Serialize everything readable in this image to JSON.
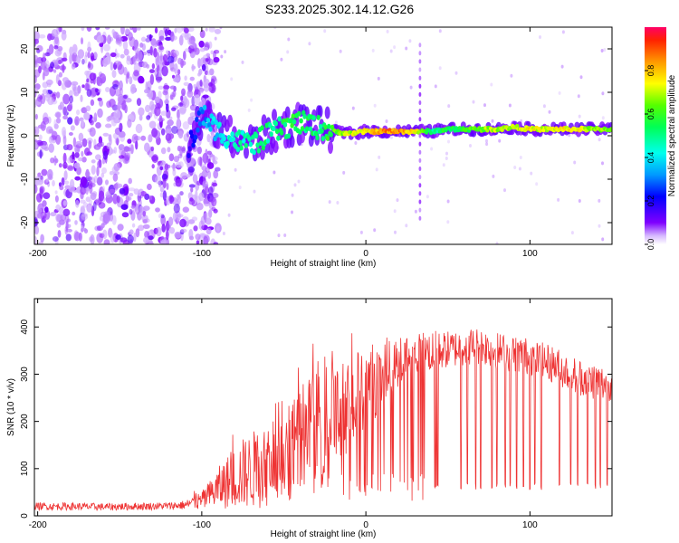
{
  "title": "S233.2025.302.14.12.G26",
  "chart_data": [
    {
      "type": "heatmap",
      "xlabel": "Height of straight line (km)",
      "ylabel": "Frequency (Hz)",
      "xlim": [
        -202,
        150
      ],
      "ylim": [
        -25,
        25
      ],
      "xticks": [
        -200,
        -100,
        0,
        100
      ],
      "xtick_labels": [
        "-200",
        "-100",
        "0",
        "100"
      ],
      "yticks": [
        -20,
        -10,
        0,
        10,
        20
      ],
      "ytick_labels": [
        "-20",
        "-10",
        "0",
        "10",
        "20"
      ],
      "colorbar": {
        "label": "Normalized spectral amplitude",
        "range": [
          0,
          1
        ],
        "ticks": [
          0.0,
          0.2,
          0.4,
          0.6,
          0.8
        ],
        "tick_labels": [
          "0.0",
          "0.2",
          "0.4",
          "0.6",
          "0.8"
        ]
      },
      "ridge": {
        "x": [
          -108,
          -100,
          -90,
          -80,
          -70,
          -60,
          -50,
          -40,
          -30,
          -20,
          -10,
          0,
          10,
          20,
          30,
          40,
          50,
          60,
          70,
          80,
          90,
          100,
          110,
          120,
          130,
          140,
          150
        ],
        "freq": [
          -3,
          5,
          1,
          -1,
          -2,
          0,
          2,
          3,
          2,
          1,
          0.5,
          1,
          1,
          1,
          1,
          1,
          1.5,
          1.5,
          1.5,
          1.5,
          2,
          1.5,
          1.5,
          1.5,
          1.5,
          1.5,
          1.5
        ],
        "amplitude": [
          0.2,
          0.3,
          0.4,
          0.45,
          0.5,
          0.5,
          0.55,
          0.55,
          0.5,
          0.6,
          0.7,
          0.75,
          0.85,
          0.85,
          0.75,
          0.5,
          0.55,
          0.6,
          0.65,
          0.7,
          0.7,
          0.75,
          0.7,
          0.75,
          0.75,
          0.65,
          0.65
        ]
      }
    },
    {
      "type": "line",
      "xlabel": "Height of straight line (km)",
      "ylabel": "SNR (10 * v/v)",
      "xlim": [
        -202,
        150
      ],
      "ylim": [
        0,
        460
      ],
      "xticks": [
        -200,
        -100,
        0,
        100
      ],
      "xtick_labels": [
        "-200",
        "-100",
        "0",
        "100"
      ],
      "yticks": [
        0,
        100,
        200,
        300,
        400
      ],
      "ytick_labels": [
        "0",
        "100",
        "200",
        "300",
        "400"
      ],
      "series": [
        {
          "name": "SNR",
          "color": "#ee3333",
          "x": [
            -202,
            -180,
            -160,
            -140,
            -120,
            -110,
            -100,
            -95,
            -90,
            -85,
            -80,
            -75,
            -70,
            -65,
            -60,
            -55,
            -50,
            -45,
            -40,
            -35,
            -30,
            -25,
            -20,
            -15,
            -10,
            -5,
            0,
            5,
            10,
            15,
            20,
            25,
            30,
            35,
            40,
            45,
            50,
            55,
            60,
            65,
            70,
            75,
            80,
            85,
            90,
            95,
            100,
            105,
            110,
            115,
            120,
            125,
            130,
            135,
            140,
            145,
            150
          ],
          "values": [
            20,
            20,
            19,
            20,
            21,
            23,
            32,
            45,
            58,
            70,
            80,
            90,
            95,
            105,
            115,
            125,
            140,
            150,
            160,
            175,
            185,
            200,
            210,
            222,
            235,
            248,
            262,
            282,
            300,
            315,
            325,
            335,
            340,
            345,
            350,
            350,
            352,
            355,
            358,
            360,
            360,
            355,
            350,
            345,
            345,
            340,
            338,
            330,
            325,
            320,
            310,
            300,
            295,
            290,
            285,
            280,
            285
          ],
          "spread": [
            8,
            8,
            8,
            8,
            8,
            10,
            20,
            30,
            45,
            55,
            65,
            75,
            80,
            90,
            95,
            100,
            110,
            115,
            120,
            120,
            120,
            115,
            110,
            105,
            100,
            95,
            90,
            80,
            70,
            60,
            55,
            50,
            45,
            45,
            45,
            40,
            40,
            40,
            40,
            40,
            40,
            40,
            40,
            40,
            40,
            40,
            40,
            40,
            40,
            40,
            40,
            40,
            40,
            40,
            40,
            40,
            40
          ],
          "dropouts_x": [
            42,
            43,
            44,
            58,
            62,
            67,
            70,
            77,
            80,
            85,
            88,
            92,
            96,
            100,
            103,
            107,
            118,
            125,
            129,
            135,
            140,
            143,
            147
          ]
        }
      ]
    }
  ]
}
